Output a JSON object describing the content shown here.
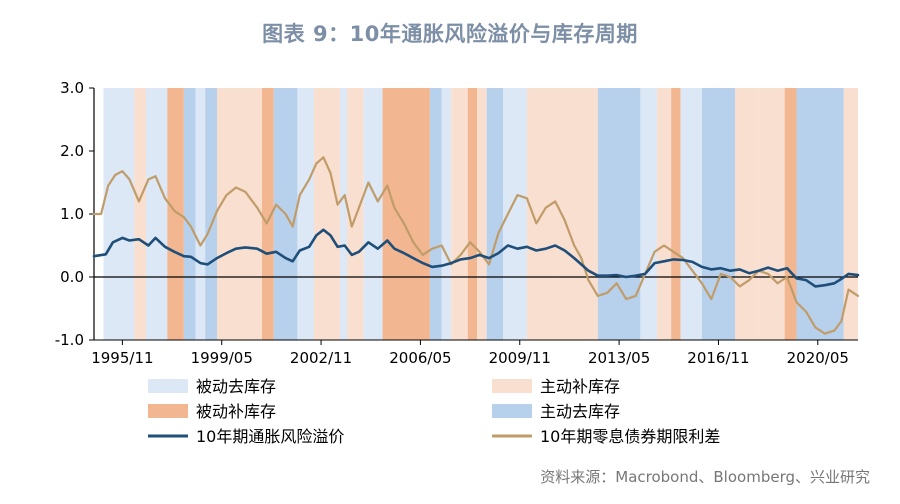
{
  "figure": {
    "title": "图表 9：10年通胀风险溢价与库存周期",
    "source": "资料来源：Macrobond、Bloomberg、兴业研究"
  },
  "colors": {
    "passive_destock": "#dce8f5",
    "active_restock": "#f9dfcf",
    "passive_restock": "#f2b690",
    "active_destock": "#b7d1ec",
    "inflation_premium": "#1f4e79",
    "zero_coupon_spread": "#c09c6a"
  },
  "chart_data": {
    "type": "line",
    "ylim": [
      -1.0,
      3.0
    ],
    "y_ticks": [
      3.0,
      2.0,
      1.0,
      0.0,
      -1.0
    ],
    "y_tick_labels": [
      "3.0",
      "2.0",
      "1.0",
      "0.0",
      "-1.0"
    ],
    "x_range": [
      "1994-11",
      "2021-10"
    ],
    "x_ticks": [
      "1995-11",
      "1999-05",
      "2002-11",
      "2006-05",
      "2009-11",
      "2013-05",
      "2016-11",
      "2020-05"
    ],
    "x_tick_labels": [
      "1995/11",
      "1999/05",
      "2002/11",
      "2006/05",
      "2009/11",
      "2013/05",
      "2016/11",
      "2020/05"
    ],
    "legend": {
      "placement": "bottom",
      "items": [
        {
          "label": "被动去库存",
          "kind": "box",
          "key": "passive_destock"
        },
        {
          "label": "主动补库存",
          "kind": "box",
          "key": "active_restock"
        },
        {
          "label": "被动补库存",
          "kind": "box",
          "key": "passive_restock"
        },
        {
          "label": "主动去库存",
          "kind": "box",
          "key": "active_destock"
        },
        {
          "label": "10年期通胀风险溢价",
          "kind": "line",
          "key": "inflation_premium"
        },
        {
          "label": "10年期零息债券期限利差",
          "kind": "line",
          "key": "zero_coupon_spread"
        }
      ]
    },
    "phases": [
      {
        "start": "1995-03",
        "end": "1996-04",
        "key": "passive_destock"
      },
      {
        "start": "1996-04",
        "end": "1996-09",
        "key": "active_restock"
      },
      {
        "start": "1996-09",
        "end": "1997-06",
        "key": "passive_destock"
      },
      {
        "start": "1997-06",
        "end": "1998-01",
        "key": "passive_restock"
      },
      {
        "start": "1998-01",
        "end": "1998-06",
        "key": "active_destock"
      },
      {
        "start": "1998-06",
        "end": "1998-10",
        "key": "passive_destock"
      },
      {
        "start": "1998-10",
        "end": "1999-03",
        "key": "active_destock"
      },
      {
        "start": "1999-03",
        "end": "2000-10",
        "key": "active_restock"
      },
      {
        "start": "2000-10",
        "end": "2001-03",
        "key": "passive_restock"
      },
      {
        "start": "2001-03",
        "end": "2002-01",
        "key": "active_destock"
      },
      {
        "start": "2002-01",
        "end": "2002-08",
        "key": "passive_destock"
      },
      {
        "start": "2002-08",
        "end": "2003-07",
        "key": "active_restock"
      },
      {
        "start": "2003-07",
        "end": "2003-10",
        "key": "passive_destock"
      },
      {
        "start": "2003-10",
        "end": "2004-05",
        "key": "active_restock"
      },
      {
        "start": "2004-05",
        "end": "2005-01",
        "key": "passive_destock"
      },
      {
        "start": "2005-01",
        "end": "2006-09",
        "key": "passive_restock"
      },
      {
        "start": "2006-09",
        "end": "2007-02",
        "key": "active_destock"
      },
      {
        "start": "2007-02",
        "end": "2007-06",
        "key": "passive_destock"
      },
      {
        "start": "2007-06",
        "end": "2008-01",
        "key": "active_restock"
      },
      {
        "start": "2008-01",
        "end": "2008-05",
        "key": "passive_restock"
      },
      {
        "start": "2008-05",
        "end": "2008-09",
        "key": "active_restock"
      },
      {
        "start": "2008-09",
        "end": "2009-04",
        "key": "active_destock"
      },
      {
        "start": "2009-04",
        "end": "2010-02",
        "key": "passive_destock"
      },
      {
        "start": "2010-02",
        "end": "2011-03",
        "key": "active_restock"
      },
      {
        "start": "2011-03",
        "end": "2012-08",
        "key": "active_restock"
      },
      {
        "start": "2012-08",
        "end": "2014-02",
        "key": "active_destock"
      },
      {
        "start": "2014-02",
        "end": "2014-09",
        "key": "passive_destock"
      },
      {
        "start": "2014-09",
        "end": "2015-03",
        "key": "active_restock"
      },
      {
        "start": "2015-03",
        "end": "2015-07",
        "key": "passive_restock"
      },
      {
        "start": "2015-07",
        "end": "2016-04",
        "key": "passive_destock"
      },
      {
        "start": "2016-04",
        "end": "2017-06",
        "key": "active_destock"
      },
      {
        "start": "2017-06",
        "end": "2018-04",
        "key": "active_restock"
      },
      {
        "start": "2018-04",
        "end": "2019-03",
        "key": "active_restock"
      },
      {
        "start": "2019-03",
        "end": "2019-08",
        "key": "passive_restock"
      },
      {
        "start": "2019-08",
        "end": "2021-04",
        "key": "active_destock"
      },
      {
        "start": "2021-04",
        "end": "2021-10",
        "key": "active_restock"
      }
    ],
    "series": [
      {
        "name": "10年期通胀风险溢价",
        "key": "inflation_premium",
        "points": [
          [
            "1994-11",
            0.33
          ],
          [
            "1995-04",
            0.36
          ],
          [
            "1995-07",
            0.55
          ],
          [
            "1995-11",
            0.62
          ],
          [
            "1996-02",
            0.58
          ],
          [
            "1996-06",
            0.6
          ],
          [
            "1996-10",
            0.5
          ],
          [
            "1997-01",
            0.62
          ],
          [
            "1997-05",
            0.48
          ],
          [
            "1997-09",
            0.4
          ],
          [
            "1998-01",
            0.33
          ],
          [
            "1998-04",
            0.32
          ],
          [
            "1998-08",
            0.22
          ],
          [
            "1998-11",
            0.2
          ],
          [
            "1999-03",
            0.3
          ],
          [
            "1999-07",
            0.38
          ],
          [
            "1999-11",
            0.45
          ],
          [
            "2000-03",
            0.47
          ],
          [
            "2000-08",
            0.45
          ],
          [
            "2000-12",
            0.37
          ],
          [
            "2001-04",
            0.4
          ],
          [
            "2001-08",
            0.3
          ],
          [
            "2001-11",
            0.25
          ],
          [
            "2002-02",
            0.42
          ],
          [
            "2002-06",
            0.48
          ],
          [
            "2002-09",
            0.66
          ],
          [
            "2002-12",
            0.75
          ],
          [
            "2003-03",
            0.66
          ],
          [
            "2003-06",
            0.48
          ],
          [
            "2003-09",
            0.5
          ],
          [
            "2003-12",
            0.35
          ],
          [
            "2004-03",
            0.4
          ],
          [
            "2004-07",
            0.55
          ],
          [
            "2004-11",
            0.45
          ],
          [
            "2005-03",
            0.58
          ],
          [
            "2005-06",
            0.45
          ],
          [
            "2005-10",
            0.38
          ],
          [
            "2006-02",
            0.3
          ],
          [
            "2006-06",
            0.22
          ],
          [
            "2006-10",
            0.16
          ],
          [
            "2007-02",
            0.18
          ],
          [
            "2007-06",
            0.22
          ],
          [
            "2007-10",
            0.28
          ],
          [
            "2008-02",
            0.3
          ],
          [
            "2008-06",
            0.35
          ],
          [
            "2008-10",
            0.3
          ],
          [
            "2009-02",
            0.38
          ],
          [
            "2009-06",
            0.5
          ],
          [
            "2009-10",
            0.45
          ],
          [
            "2010-02",
            0.48
          ],
          [
            "2010-06",
            0.42
          ],
          [
            "2010-10",
            0.45
          ],
          [
            "2011-02",
            0.5
          ],
          [
            "2011-06",
            0.42
          ],
          [
            "2011-10",
            0.3
          ],
          [
            "2012-01",
            0.2
          ],
          [
            "2012-04",
            0.1
          ],
          [
            "2012-08",
            0.02
          ],
          [
            "2012-12",
            0.02
          ],
          [
            "2013-04",
            0.03
          ],
          [
            "2013-08",
            0.0
          ],
          [
            "2013-12",
            0.02
          ],
          [
            "2014-04",
            0.05
          ],
          [
            "2014-08",
            0.22
          ],
          [
            "2014-12",
            0.25
          ],
          [
            "2015-04",
            0.28
          ],
          [
            "2015-08",
            0.27
          ],
          [
            "2015-12",
            0.24
          ],
          [
            "2016-04",
            0.16
          ],
          [
            "2016-08",
            0.12
          ],
          [
            "2016-12",
            0.14
          ],
          [
            "2017-04",
            0.1
          ],
          [
            "2017-08",
            0.12
          ],
          [
            "2017-12",
            0.06
          ],
          [
            "2018-04",
            0.1
          ],
          [
            "2018-08",
            0.15
          ],
          [
            "2018-12",
            0.1
          ],
          [
            "2019-04",
            0.14
          ],
          [
            "2019-08",
            -0.02
          ],
          [
            "2019-12",
            -0.05
          ],
          [
            "2020-04",
            -0.15
          ],
          [
            "2020-08",
            -0.13
          ],
          [
            "2020-12",
            -0.1
          ],
          [
            "2021-03",
            -0.03
          ],
          [
            "2021-06",
            0.05
          ],
          [
            "2021-10",
            0.03
          ]
        ]
      },
      {
        "name": "10年期零息债券期限利差",
        "key": "zero_coupon_spread",
        "points": [
          [
            "1994-11",
            1.0
          ],
          [
            "1995-02",
            1.0
          ],
          [
            "1995-05",
            1.45
          ],
          [
            "1995-08",
            1.62
          ],
          [
            "1995-11",
            1.68
          ],
          [
            "1996-02",
            1.55
          ],
          [
            "1996-06",
            1.2
          ],
          [
            "1996-10",
            1.55
          ],
          [
            "1997-01",
            1.6
          ],
          [
            "1997-05",
            1.25
          ],
          [
            "1997-09",
            1.05
          ],
          [
            "1998-01",
            0.95
          ],
          [
            "1998-04",
            0.8
          ],
          [
            "1998-08",
            0.5
          ],
          [
            "1998-11",
            0.68
          ],
          [
            "1999-03",
            1.05
          ],
          [
            "1999-07",
            1.3
          ],
          [
            "1999-11",
            1.42
          ],
          [
            "2000-03",
            1.35
          ],
          [
            "2000-08",
            1.1
          ],
          [
            "2000-12",
            0.85
          ],
          [
            "2001-04",
            1.15
          ],
          [
            "2001-08",
            1.0
          ],
          [
            "2001-11",
            0.8
          ],
          [
            "2002-02",
            1.3
          ],
          [
            "2002-06",
            1.55
          ],
          [
            "2002-09",
            1.8
          ],
          [
            "2002-12",
            1.9
          ],
          [
            "2003-03",
            1.65
          ],
          [
            "2003-06",
            1.15
          ],
          [
            "2003-09",
            1.3
          ],
          [
            "2003-12",
            0.8
          ],
          [
            "2004-03",
            1.1
          ],
          [
            "2004-07",
            1.5
          ],
          [
            "2004-11",
            1.2
          ],
          [
            "2005-03",
            1.45
          ],
          [
            "2005-06",
            1.1
          ],
          [
            "2005-10",
            0.85
          ],
          [
            "2006-02",
            0.55
          ],
          [
            "2006-06",
            0.35
          ],
          [
            "2006-10",
            0.45
          ],
          [
            "2007-02",
            0.5
          ],
          [
            "2007-06",
            0.2
          ],
          [
            "2007-10",
            0.35
          ],
          [
            "2008-02",
            0.55
          ],
          [
            "2008-06",
            0.4
          ],
          [
            "2008-10",
            0.2
          ],
          [
            "2009-02",
            0.7
          ],
          [
            "2009-06",
            1.0
          ],
          [
            "2009-10",
            1.3
          ],
          [
            "2010-02",
            1.25
          ],
          [
            "2010-06",
            0.85
          ],
          [
            "2010-10",
            1.1
          ],
          [
            "2011-02",
            1.2
          ],
          [
            "2011-06",
            0.9
          ],
          [
            "2011-10",
            0.5
          ],
          [
            "2012-01",
            0.3
          ],
          [
            "2012-04",
            -0.05
          ],
          [
            "2012-08",
            -0.3
          ],
          [
            "2012-12",
            -0.25
          ],
          [
            "2013-04",
            -0.1
          ],
          [
            "2013-08",
            -0.35
          ],
          [
            "2013-12",
            -0.3
          ],
          [
            "2014-04",
            0.05
          ],
          [
            "2014-08",
            0.4
          ],
          [
            "2014-12",
            0.5
          ],
          [
            "2015-04",
            0.4
          ],
          [
            "2015-08",
            0.3
          ],
          [
            "2015-12",
            0.1
          ],
          [
            "2016-04",
            -0.1
          ],
          [
            "2016-08",
            -0.35
          ],
          [
            "2016-12",
            0.05
          ],
          [
            "2017-04",
            0.0
          ],
          [
            "2017-08",
            -0.15
          ],
          [
            "2017-12",
            -0.05
          ],
          [
            "2018-04",
            0.1
          ],
          [
            "2018-08",
            0.05
          ],
          [
            "2018-12",
            -0.1
          ],
          [
            "2019-04",
            0.0
          ],
          [
            "2019-08",
            -0.4
          ],
          [
            "2019-12",
            -0.55
          ],
          [
            "2020-04",
            -0.8
          ],
          [
            "2020-08",
            -0.9
          ],
          [
            "2020-12",
            -0.85
          ],
          [
            "2021-03",
            -0.7
          ],
          [
            "2021-06",
            -0.2
          ],
          [
            "2021-10",
            -0.3
          ]
        ]
      }
    ]
  }
}
